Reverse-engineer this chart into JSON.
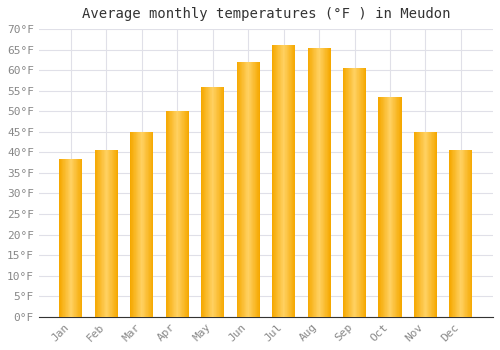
{
  "title": "Average monthly temperatures (°F ) in Meudon",
  "months": [
    "Jan",
    "Feb",
    "Mar",
    "Apr",
    "May",
    "Jun",
    "Jul",
    "Aug",
    "Sep",
    "Oct",
    "Nov",
    "Dec"
  ],
  "values": [
    38.5,
    40.5,
    45.0,
    50.0,
    56.0,
    62.0,
    66.0,
    65.5,
    60.5,
    53.5,
    45.0,
    40.5
  ],
  "bar_color_edge": "#F5A800",
  "bar_color_center": "#FFD060",
  "ylim": [
    0,
    70
  ],
  "yticks": [
    0,
    5,
    10,
    15,
    20,
    25,
    30,
    35,
    40,
    45,
    50,
    55,
    60,
    65,
    70
  ],
  "background_color": "#FFFFFF",
  "grid_color": "#E0E0E8",
  "title_fontsize": 10,
  "tick_fontsize": 8
}
